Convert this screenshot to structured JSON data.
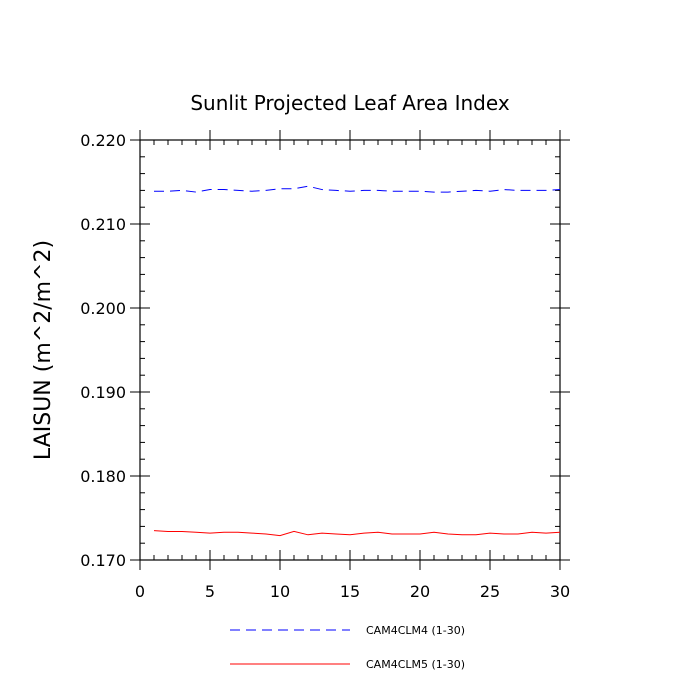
{
  "chart_data": {
    "type": "line",
    "title": "Sunlit Projected Leaf Area Index",
    "xlabel": "",
    "ylabel": "LAISUN  (m^2/m^2)",
    "xlim": [
      0,
      30
    ],
    "ylim": [
      0.17,
      0.22
    ],
    "x_ticks": [
      0,
      5,
      10,
      15,
      20,
      25,
      30
    ],
    "x_tick_labels": [
      "0",
      "5",
      "10",
      "15",
      "20",
      "25",
      "30"
    ],
    "y_ticks": [
      0.17,
      0.18,
      0.19,
      0.2,
      0.21,
      0.22
    ],
    "y_tick_labels": [
      "0.170",
      "0.180",
      "0.190",
      "0.200",
      "0.210",
      "0.220"
    ],
    "grid": false,
    "legend_position": "bottom",
    "x": [
      1,
      2,
      3,
      4,
      5,
      6,
      7,
      8,
      9,
      10,
      11,
      12,
      13,
      14,
      15,
      16,
      17,
      18,
      19,
      20,
      21,
      22,
      23,
      24,
      25,
      26,
      27,
      28,
      29,
      30
    ],
    "series": [
      {
        "name": "CAM4CLM4 (1-30)",
        "color": "#0000ff",
        "style": "dashed",
        "values": [
          0.2139,
          0.2139,
          0.214,
          0.2138,
          0.2141,
          0.2141,
          0.214,
          0.2139,
          0.214,
          0.2142,
          0.2142,
          0.2145,
          0.2141,
          0.214,
          0.2139,
          0.214,
          0.214,
          0.2139,
          0.2139,
          0.2139,
          0.2138,
          0.2138,
          0.2139,
          0.214,
          0.2139,
          0.2141,
          0.214,
          0.214,
          0.214,
          0.2141
        ]
      },
      {
        "name": "CAM4CLM5 (1-30)",
        "color": "#ff0000",
        "style": "solid",
        "values": [
          0.1735,
          0.1734,
          0.1734,
          0.1733,
          0.1732,
          0.1733,
          0.1733,
          0.1732,
          0.1731,
          0.1729,
          0.1734,
          0.173,
          0.1732,
          0.1731,
          0.173,
          0.1732,
          0.1733,
          0.1731,
          0.1731,
          0.1731,
          0.1733,
          0.1731,
          0.173,
          0.173,
          0.1732,
          0.1731,
          0.1731,
          0.1733,
          0.1732,
          0.1733
        ]
      }
    ]
  }
}
